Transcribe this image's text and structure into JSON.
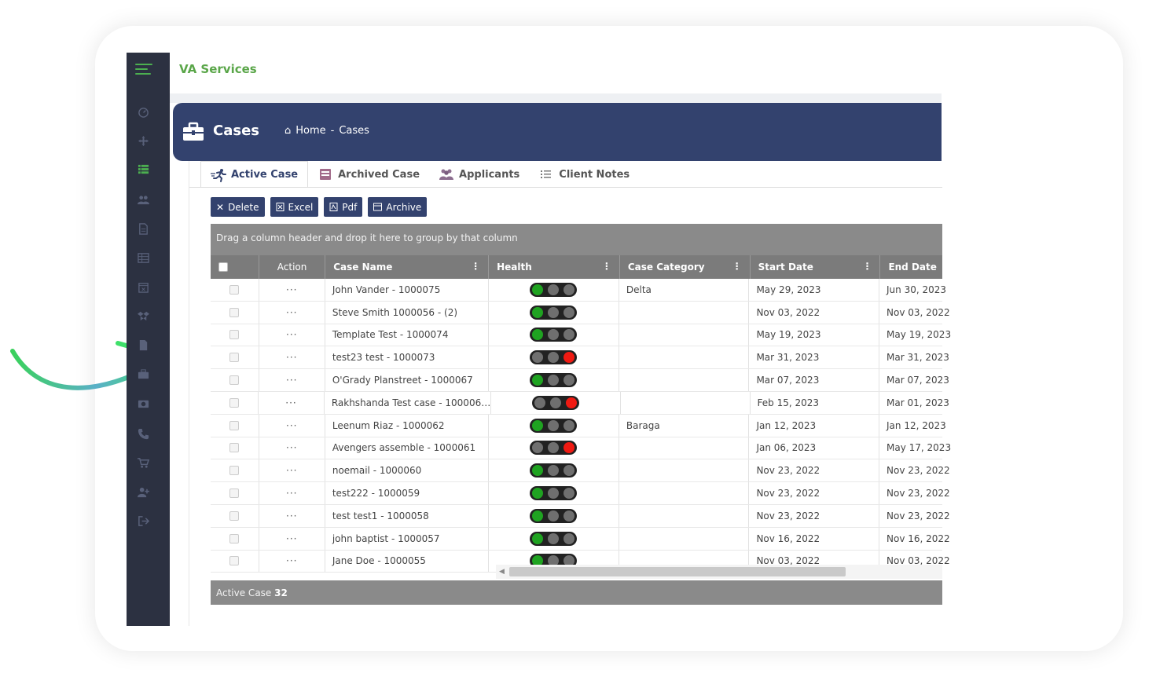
{
  "app": {
    "brand": "VA Services"
  },
  "header": {
    "title": "Cases",
    "breadcrumb": {
      "home": "Home",
      "separator": "-",
      "current": "Cases"
    }
  },
  "tabs": [
    {
      "label": "Active Case",
      "icon": "running-person-icon",
      "active": true
    },
    {
      "label": "Archived Case",
      "icon": "archive-box-icon",
      "active": false
    },
    {
      "label": "Applicants",
      "icon": "users-group-icon",
      "active": false
    },
    {
      "label": "Client Notes",
      "icon": "list-icon",
      "active": false
    }
  ],
  "toolbar": {
    "delete_label": "Delete",
    "excel_label": "Excel",
    "pdf_label": "Pdf",
    "archive_label": "Archive"
  },
  "grid": {
    "group_hint": "Drag a column header and drop it here to group by that column",
    "columns": {
      "action": "Action",
      "case_name": "Case Name",
      "health": "Health",
      "case_category": "Case Category",
      "start_date": "Start Date",
      "end_date": "End Date"
    },
    "rows": [
      {
        "action": "···",
        "name": "John Vander - 1000075",
        "health": [
          "g",
          "o",
          "o"
        ],
        "category": "Delta",
        "start": "May 29, 2023",
        "end": "Jun 30, 2023"
      },
      {
        "action": "···",
        "name": "Steve Smith 1000056 - (2)",
        "health": [
          "g",
          "o",
          "o"
        ],
        "category": "",
        "start": "Nov 03, 2022",
        "end": "Nov 03, 2022"
      },
      {
        "action": "···",
        "name": "Template Test - 1000074",
        "health": [
          "g",
          "o",
          "o"
        ],
        "category": "",
        "start": "May 19, 2023",
        "end": "May 19, 2023"
      },
      {
        "action": "···",
        "name": "test23 test - 1000073",
        "health": [
          "o",
          "o",
          "r"
        ],
        "category": "",
        "start": "Mar 31, 2023",
        "end": "Mar 31, 2023"
      },
      {
        "action": "···",
        "name": "O'Grady Planstreet - 1000067",
        "health": [
          "g",
          "o",
          "o"
        ],
        "category": "",
        "start": "Mar 07, 2023",
        "end": "Mar 07, 2023"
      },
      {
        "action": "···",
        "name": "Rakhshanda Test case - 100006…",
        "health": [
          "o",
          "o",
          "r"
        ],
        "category": "",
        "start": "Feb 15, 2023",
        "end": "Mar 01, 2023"
      },
      {
        "action": "···",
        "name": "Leenum Riaz - 1000062",
        "health": [
          "g",
          "o",
          "o"
        ],
        "category": "Baraga",
        "start": "Jan 12, 2023",
        "end": "Jan 12, 2023"
      },
      {
        "action": "···",
        "name": "Avengers assemble - 1000061",
        "health": [
          "o",
          "o",
          "r"
        ],
        "category": "",
        "start": "Jan 06, 2023",
        "end": "May 17, 2023"
      },
      {
        "action": "···",
        "name": "noemail - 1000060",
        "health": [
          "g",
          "o",
          "o"
        ],
        "category": "",
        "start": "Nov 23, 2022",
        "end": "Nov 23, 2022"
      },
      {
        "action": "···",
        "name": "test222 - 1000059",
        "health": [
          "g",
          "o",
          "o"
        ],
        "category": "",
        "start": "Nov 23, 2022",
        "end": "Nov 23, 2022"
      },
      {
        "action": "···",
        "name": "test test1 - 1000058",
        "health": [
          "g",
          "o",
          "o"
        ],
        "category": "",
        "start": "Nov 23, 2022",
        "end": "Nov 23, 2022"
      },
      {
        "action": "···",
        "name": "john baptist - 1000057",
        "health": [
          "g",
          "o",
          "o"
        ],
        "category": "",
        "start": "Nov 16, 2022",
        "end": "Nov 16, 2022"
      },
      {
        "action": "···",
        "name": "Jane Doe - 1000055",
        "health": [
          "g",
          "o",
          "o"
        ],
        "category": "",
        "start": "Nov 03, 2022",
        "end": "Nov 03, 2022"
      }
    ],
    "footer_label": "Active Case",
    "footer_count": "32"
  },
  "sidebar_icons": [
    "dashboard-icon",
    "move-icon",
    "list-icon",
    "users-icon",
    "document-icon",
    "table-icon",
    "calendar-icon",
    "dropbox-icon",
    "file-icon",
    "briefcase-icon",
    "camera-icon",
    "phone-icon",
    "cart-icon",
    "add-user-icon",
    "logout-icon"
  ],
  "colors": {
    "header_bg": "#33426e",
    "brand_green": "#5aa649",
    "sidebar_bg": "#2c3141",
    "health_green": "#1fa321",
    "health_red": "#f01a12"
  }
}
